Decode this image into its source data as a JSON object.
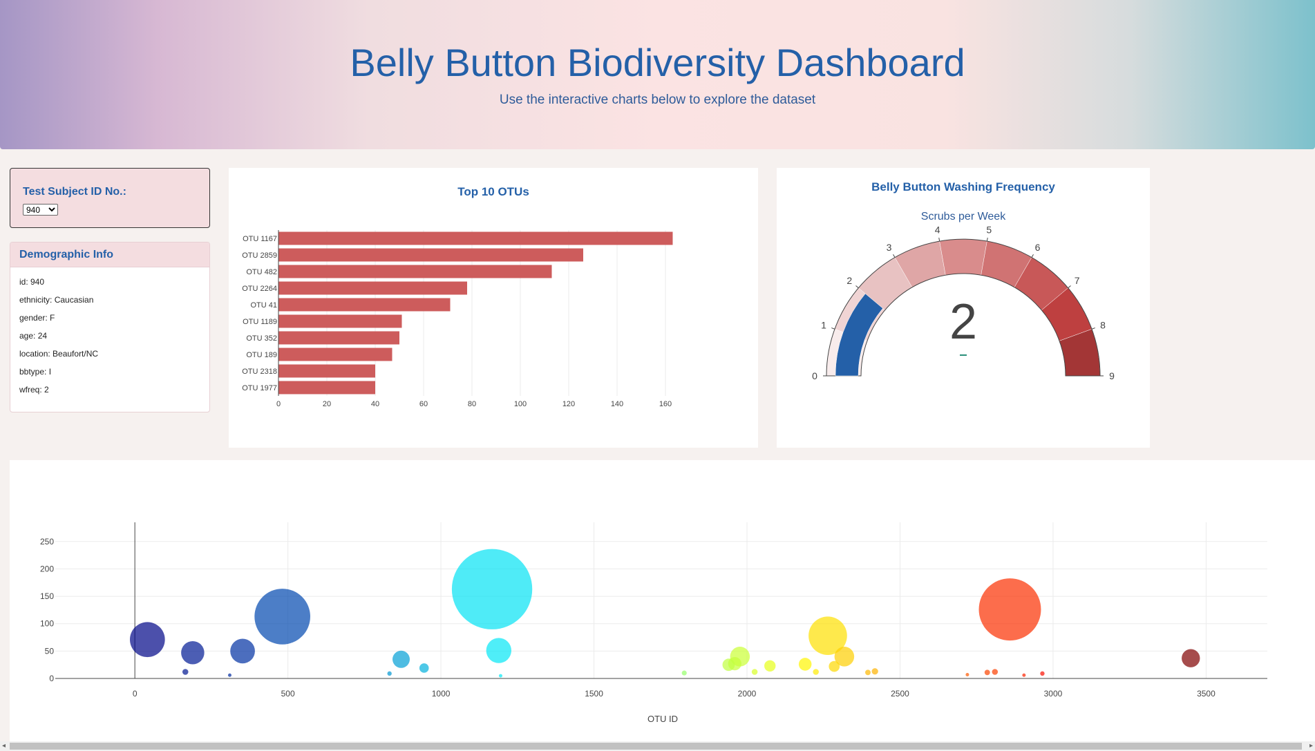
{
  "header": {
    "title": "Belly Button Biodiversity Dashboard",
    "subtitle": "Use the interactive charts below to explore the dataset"
  },
  "selector": {
    "label": "Test Subject ID No.:",
    "selected": "940"
  },
  "demographic": {
    "heading": "Demographic Info",
    "rows": [
      "id: 940",
      "ethnicity: Caucasian",
      "gender: F",
      "age: 24",
      "location: Beaufort/NC",
      "bbtype: I",
      "wfreq: 2"
    ]
  },
  "colors": {
    "bar": "#cd5c5c",
    "gauge_needle": "#2460a8",
    "title": "#2460a8"
  },
  "chart_data": [
    {
      "type": "bar",
      "orientation": "horizontal",
      "title": "Top 10 OTUs",
      "categories": [
        "OTU 1167",
        "OTU 2859",
        "OTU 482",
        "OTU 2264",
        "OTU 41",
        "OTU 1189",
        "OTU 352",
        "OTU 189",
        "OTU 2318",
        "OTU 1977"
      ],
      "values": [
        163,
        126,
        113,
        78,
        71,
        51,
        50,
        47,
        40,
        40
      ],
      "xlim": [
        0,
        170
      ],
      "xticks": [
        0,
        20,
        40,
        60,
        80,
        100,
        120,
        140,
        160
      ]
    },
    {
      "type": "gauge",
      "title": "Belly Button Washing Frequency",
      "subtitle": "Scrubs per Week",
      "value": 2,
      "value_label": "2",
      "range": [
        0,
        9
      ],
      "ticks": [
        0,
        1,
        2,
        3,
        4,
        5,
        6,
        7,
        8,
        9
      ],
      "step_colors": [
        "#f8ecec",
        "#f0d4d4",
        "#e8c2c2",
        "#dfa6a6",
        "#d98c8c",
        "#d07373",
        "#c85858",
        "#be4040",
        "#a33636"
      ]
    },
    {
      "type": "scatter",
      "subtype": "bubble",
      "xlabel": "OTU ID",
      "xlim": [
        -260,
        3700
      ],
      "ylim": [
        -5,
        285
      ],
      "xticks": [
        0,
        500,
        1000,
        1500,
        2000,
        2500,
        3000,
        3500
      ],
      "yticks": [
        0,
        50,
        100,
        150,
        200,
        250
      ],
      "points": [
        {
          "x": 41,
          "y": 71,
          "size": 71
        },
        {
          "x": 189,
          "y": 47,
          "size": 47
        },
        {
          "x": 352,
          "y": 50,
          "size": 50
        },
        {
          "x": 482,
          "y": 113,
          "size": 113
        },
        {
          "x": 165,
          "y": 12,
          "size": 12
        },
        {
          "x": 310,
          "y": 6,
          "size": 6
        },
        {
          "x": 870,
          "y": 35,
          "size": 35
        },
        {
          "x": 945,
          "y": 19,
          "size": 19
        },
        {
          "x": 832,
          "y": 9,
          "size": 9
        },
        {
          "x": 1167,
          "y": 163,
          "size": 163
        },
        {
          "x": 1189,
          "y": 51,
          "size": 51
        },
        {
          "x": 1195,
          "y": 5,
          "size": 5
        },
        {
          "x": 1795,
          "y": 10,
          "size": 10
        },
        {
          "x": 1977,
          "y": 40,
          "size": 40
        },
        {
          "x": 1960,
          "y": 27,
          "size": 27
        },
        {
          "x": 1940,
          "y": 25,
          "size": 25
        },
        {
          "x": 2075,
          "y": 23,
          "size": 23
        },
        {
          "x": 2025,
          "y": 12,
          "size": 12
        },
        {
          "x": 2190,
          "y": 26,
          "size": 26
        },
        {
          "x": 2264,
          "y": 78,
          "size": 78
        },
        {
          "x": 2318,
          "y": 40,
          "size": 40
        },
        {
          "x": 2285,
          "y": 22,
          "size": 22
        },
        {
          "x": 2225,
          "y": 12,
          "size": 12
        },
        {
          "x": 2395,
          "y": 11,
          "size": 11
        },
        {
          "x": 2418,
          "y": 13,
          "size": 13
        },
        {
          "x": 2859,
          "y": 126,
          "size": 126
        },
        {
          "x": 2785,
          "y": 11,
          "size": 11
        },
        {
          "x": 2810,
          "y": 12,
          "size": 12
        },
        {
          "x": 2720,
          "y": 7,
          "size": 7
        },
        {
          "x": 2905,
          "y": 6,
          "size": 6
        },
        {
          "x": 2965,
          "y": 9,
          "size": 9
        },
        {
          "x": 3450,
          "y": 37,
          "size": 37
        }
      ]
    }
  ]
}
